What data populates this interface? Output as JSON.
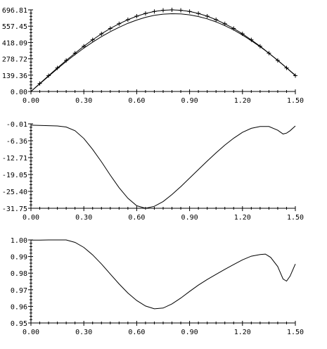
{
  "chart_data": [
    {
      "type": "line",
      "title": "",
      "xlabel": "",
      "ylabel": "",
      "xlim": [
        0,
        1.5
      ],
      "ylim": [
        0,
        696.81
      ],
      "xticks": [
        "0.00",
        "0.30",
        "0.60",
        "0.90",
        "1.20",
        "1.50"
      ],
      "yticks": [
        "696.81",
        "557.45",
        "418.09",
        "278.72",
        "139.36",
        "0.00"
      ],
      "grid": false,
      "series": [
        {
          "style": "line-with-plus-markers",
          "x": [
            0.0,
            0.05,
            0.1,
            0.15,
            0.2,
            0.25,
            0.3,
            0.35,
            0.4,
            0.45,
            0.5,
            0.55,
            0.6,
            0.65,
            0.7,
            0.75,
            0.8,
            0.85,
            0.9,
            0.95,
            1.0,
            1.05,
            1.1,
            1.15,
            1.2,
            1.25,
            1.3,
            1.35,
            1.4,
            1.45,
            1.5
          ],
          "y": [
            0,
            68,
            135,
            201,
            265,
            327,
            386,
            441,
            492,
            538,
            578,
            613,
            643,
            666,
            683,
            693,
            697,
            693,
            683,
            666,
            643,
            613,
            578,
            538,
            492,
            441,
            386,
            327,
            265,
            201,
            135
          ]
        },
        {
          "style": "line",
          "x": [
            0.0,
            0.05,
            0.1,
            0.15,
            0.2,
            0.25,
            0.3,
            0.35,
            0.4,
            0.45,
            0.5,
            0.55,
            0.6,
            0.65,
            0.7,
            0.75,
            0.8,
            0.85,
            0.9,
            0.95,
            1.0,
            1.05,
            1.1,
            1.15,
            1.2,
            1.25,
            1.3,
            1.35,
            1.4,
            1.45,
            1.5
          ],
          "y": [
            0,
            65,
            130,
            194,
            256,
            315,
            370,
            421,
            468,
            510,
            548,
            582,
            610,
            633,
            650,
            660,
            664,
            662,
            654,
            640,
            620,
            594,
            562,
            525,
            482,
            434,
            382,
            326,
            266,
            203,
            138
          ]
        }
      ]
    },
    {
      "type": "line",
      "title": "",
      "xlabel": "",
      "ylabel": "",
      "xlim": [
        0,
        1.5
      ],
      "ylim": [
        -31.75,
        0
      ],
      "xticks": [
        "0.00",
        "0.30",
        "0.60",
        "0.90",
        "1.20",
        "1.50"
      ],
      "yticks": [
        "-0.01",
        "-6.36",
        "-12.71",
        "-19.05",
        "-25.40",
        "-31.75"
      ],
      "grid": false,
      "series": [
        {
          "style": "line",
          "x": [
            0.0,
            0.05,
            0.1,
            0.15,
            0.2,
            0.25,
            0.3,
            0.35,
            0.4,
            0.45,
            0.5,
            0.55,
            0.6,
            0.65,
            0.7,
            0.75,
            0.8,
            0.85,
            0.9,
            0.95,
            1.0,
            1.05,
            1.1,
            1.15,
            1.2,
            1.25,
            1.3,
            1.35,
            1.4,
            1.43,
            1.45,
            1.47,
            1.5
          ],
          "y": [
            -0.5,
            -0.6,
            -0.7,
            -0.8,
            -1.2,
            -2.6,
            -5.5,
            -9.6,
            -14.3,
            -19.3,
            -24.0,
            -28.0,
            -30.8,
            -31.75,
            -31.0,
            -29.2,
            -26.6,
            -23.6,
            -20.4,
            -17.2,
            -14.0,
            -10.9,
            -8.0,
            -5.4,
            -3.2,
            -1.7,
            -1.0,
            -1.0,
            -2.4,
            -3.8,
            -3.5,
            -2.6,
            -0.8
          ]
        }
      ]
    },
    {
      "type": "line",
      "title": "",
      "xlabel": "",
      "ylabel": "",
      "xlim": [
        0,
        1.5
      ],
      "ylim": [
        0.95,
        1.0
      ],
      "xticks": [
        "0.00",
        "0.30",
        "0.60",
        "0.90",
        "1.20",
        "1.50"
      ],
      "yticks": [
        "1.00",
        "0.99",
        "0.98",
        "0.97",
        "0.96",
        "0.95"
      ],
      "grid": false,
      "series": [
        {
          "style": "line",
          "x": [
            0.0,
            0.05,
            0.1,
            0.15,
            0.2,
            0.25,
            0.3,
            0.35,
            0.4,
            0.45,
            0.5,
            0.55,
            0.6,
            0.65,
            0.7,
            0.75,
            0.8,
            0.85,
            0.9,
            0.95,
            1.0,
            1.05,
            1.1,
            1.15,
            1.2,
            1.25,
            1.3,
            1.33,
            1.36,
            1.4,
            1.43,
            1.45,
            1.47,
            1.5
          ],
          "y": [
            0.9999,
            0.9999,
            1.0,
            1.0,
            1.0,
            0.9985,
            0.9955,
            0.991,
            0.9855,
            0.9795,
            0.9735,
            0.968,
            0.9635,
            0.9602,
            0.9585,
            0.959,
            0.9615,
            0.965,
            0.969,
            0.9728,
            0.9762,
            0.9793,
            0.9823,
            0.9852,
            0.988,
            0.9902,
            0.9912,
            0.9915,
            0.9895,
            0.984,
            0.9765,
            0.9752,
            0.9782,
            0.9855
          ]
        }
      ]
    }
  ]
}
